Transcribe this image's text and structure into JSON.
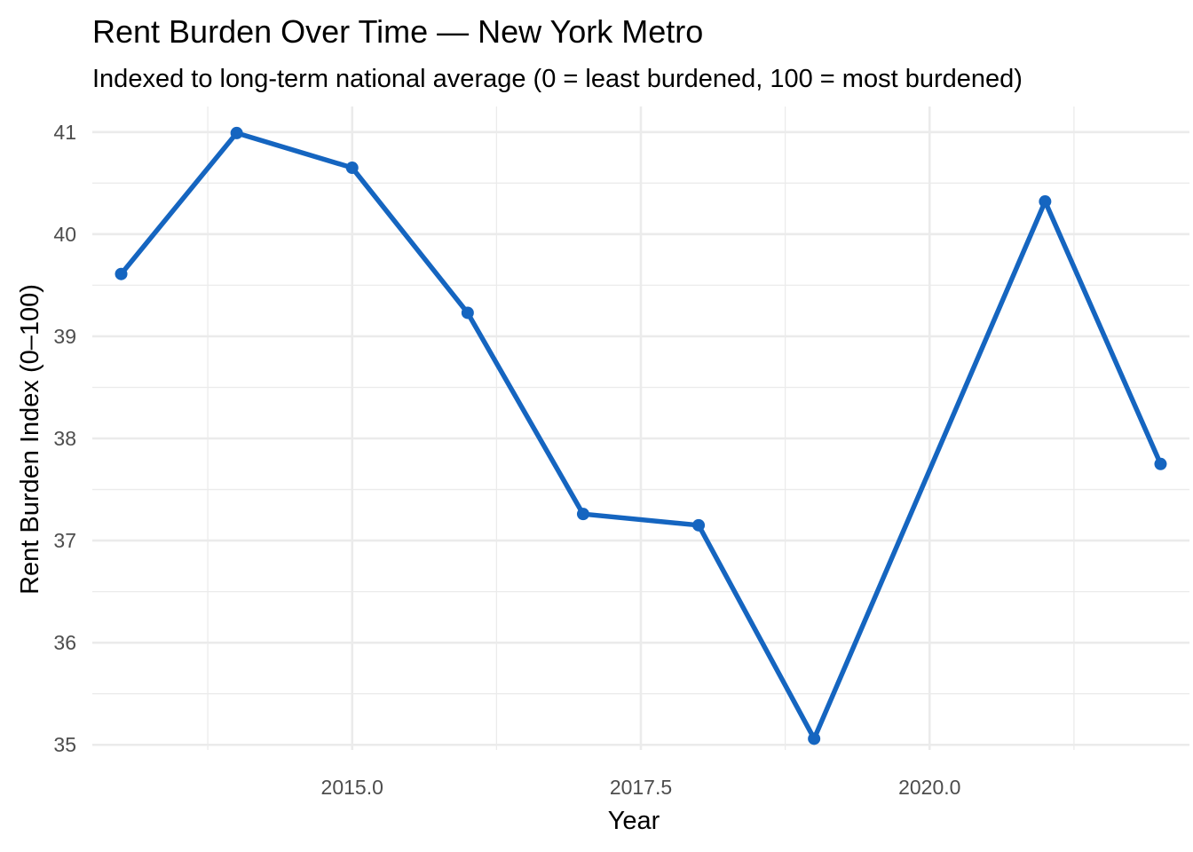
{
  "chart_data": {
    "type": "line",
    "title": "Rent Burden Over Time — New York Metro",
    "subtitle": "Indexed to long-term national average (0 = least burdened, 100 = most burdened)",
    "xlabel": "Year",
    "ylabel": "Rent Burden Index (0–100)",
    "xlim": [
      2012.75,
      2022.25
    ],
    "ylim": [
      34.95,
      41.25
    ],
    "x_ticks": [
      2015,
      2017.5,
      2020
    ],
    "x_tick_labels": [
      "2015.0",
      "2017.5",
      "2020.0"
    ],
    "y_ticks": [
      35,
      36,
      37,
      38,
      39,
      40,
      41
    ],
    "y_tick_labels": [
      "35",
      "36",
      "37",
      "38",
      "39",
      "40",
      "41"
    ],
    "grid": true,
    "legend": "none",
    "series": [
      {
        "color": "#1565c0",
        "x": [
          2013,
          2014,
          2015,
          2016,
          2017,
          2018,
          2019,
          2021,
          2022
        ],
        "y": [
          39.61,
          40.99,
          40.65,
          39.23,
          37.26,
          37.15,
          35.06,
          40.32,
          37.75
        ]
      }
    ]
  }
}
